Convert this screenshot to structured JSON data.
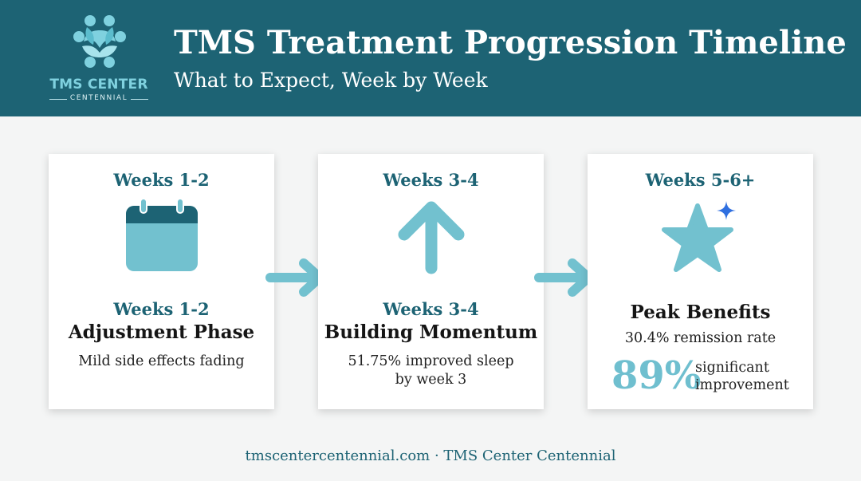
{
  "header": {
    "title": "TMS Treatment Progression Timeline",
    "subtitle": "What to Expect, Week by Week",
    "bg_color": "#1d6374"
  },
  "logo": {
    "name": "TMS CENTER",
    "sub": "CENTENNIAL",
    "icon": "interlocking-people-icon"
  },
  "cards": [
    {
      "heading": "Weeks 1-2",
      "icon": "calendar-icon",
      "sub_heading": "Weeks 1-2",
      "phase": "Adjustment Phase",
      "description": "Mild side effects fading"
    },
    {
      "heading": "Weeks 3-4",
      "icon": "up-arrow-icon",
      "sub_heading": "Weeks 3-4",
      "phase": "Building Momentum",
      "description": "51.75% improved sleep by week 3"
    },
    {
      "heading": "Weeks 5-6+",
      "icon": "star-sparkle-icon",
      "phase": "Peak Benefits",
      "remission": "30.4% remission rate",
      "big_number": "89%",
      "big_label": "significant improvement"
    }
  ],
  "colors": {
    "accent": "#6fbfcf",
    "dark_teal": "#1d6374",
    "sparkle": "#2f6fe0"
  },
  "footer": "tmscentercentennial.com · TMS Center Centennial"
}
